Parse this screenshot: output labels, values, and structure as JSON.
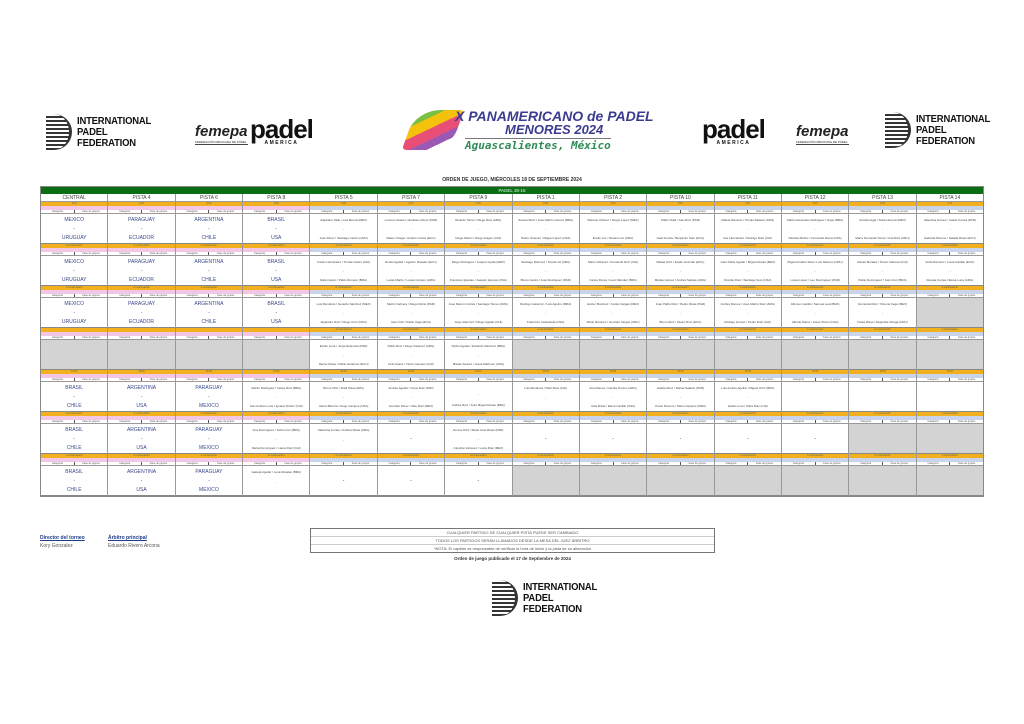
{
  "logos": {
    "ipf": "INTERNATIONAL PADEL FEDERATION",
    "ipf_lines": [
      "INTERNATIONAL",
      "PADEL",
      "FEDERATION"
    ],
    "femepa": "femepa",
    "femepa_sub": "FEDERACIÓN MEXICANA DE PÁDEL",
    "padel": "padel",
    "america": "AMERICA"
  },
  "event": {
    "line1": "X PANAMERICANO de PADEL",
    "line2": "MENORES 2024",
    "line3": "Aguascalientes, México"
  },
  "heading": "ORDEN DE JUEGO, MIÉRCOLES 18 DE SEPTIEMBRE 2024",
  "venue": "PADEL 30-15",
  "columns": [
    "CENTRAL",
    "PISTA 4",
    "PISTA 6",
    "PISTA 8",
    "PISTA 5",
    "PISTA 7",
    "PISTA 9",
    "PISTA 1",
    "PISTA 2",
    "PISTA 10",
    "PISTA 11",
    "PISTA 12",
    "PISTA 13",
    "PISTA 14"
  ],
  "slots": [
    {
      "time": "9:00",
      "next": "A continuación"
    },
    {
      "time": "A continuación"
    },
    {
      "time": "A continuación"
    },
    {
      "time": "A continuación"
    },
    {
      "time": "16:00"
    },
    {
      "time": "A continuación"
    },
    {
      "time": "A continuación"
    }
  ],
  "info": [
    "Categoría",
    "Fase de grupos"
  ],
  "cells": [
    [
      {
        "t": "team",
        "a": "MEXICO",
        "b": "URUGUAY"
      },
      {
        "t": "team",
        "a": "PARAGUAY",
        "b": "ECUADOR"
      },
      {
        "t": "team",
        "a": "ARGENTINA",
        "b": "CHILE"
      },
      {
        "t": "team",
        "a": "BRASIL",
        "b": "USA"
      },
      {
        "t": "pair",
        "a": "Alejandro Valle / Luis Bernal (MEX)",
        "b": "José Pérez / Santiago Castro (URU)"
      },
      {
        "t": "pair",
        "a": "Lorenzo Suárez / Emiliano Pérez (PAR)",
        "b": "Mateo Ortega / Andrés Cortés (ECU)"
      },
      {
        "t": "pair",
        "a": "Ricardo Torres / Diego Ríos (ARG)",
        "b": "Diego Martín / Diego Aragón (CHI)"
      },
      {
        "t": "pair",
        "a": "Samuel Ruiz / Juan Martín Gómez (BRA)",
        "b": "Pedro Jiménez / Miguel López (USA)"
      },
      {
        "t": "pair",
        "a": "Marcelo Chávez / Sergio López (MEX)",
        "b": "Emilio Luz / Daniel Luis (URU)"
      },
      {
        "t": "pair",
        "a": "Pablo Vidal / Iván Ruiz (PAR)",
        "b": "Gael Acosta / Benjamín Soto (ECU)"
      },
      {
        "t": "pair",
        "a": "Matías Ramírez / Tomás Salazar (ARG)",
        "b": "Iker Hernández / Rodrigo Díaz (CHI)"
      },
      {
        "t": "pair",
        "a": "Martín Alexander Rodríguez / Hugo (BRA)",
        "b": "Daniela Muñoz / Fernanda Ibarra (USA)"
      },
      {
        "t": "pair",
        "a": "Camila Vega / Sofía Herrera (MEX)",
        "b": "María Fernanda Torres / Ana Ruiz (URU)"
      },
      {
        "t": "pair",
        "a": "Valentina Gómez / Isabel Correa (PAR)",
        "b": "Gabriela Moreno / Natalia Rivas (ECU)"
      }
    ],
    [
      {
        "t": "team",
        "a": "MEXICO",
        "b": "URUGUAY"
      },
      {
        "t": "team",
        "a": "PARAGUAY",
        "b": "ECUADOR"
      },
      {
        "t": "team",
        "a": "ARGENTINA",
        "b": "CHILE"
      },
      {
        "t": "team",
        "a": "BRASIL",
        "b": "USA"
      },
      {
        "t": "pair",
        "a": "Carlos Hernández / Tomás Castro (CHI)",
        "b": "Rafa Castro / Pablo Romero (BRA)"
      },
      {
        "t": "pair",
        "a": "Emilio Aguilar / Agustín Rosales (ECU)",
        "b": "Lucas Martín / Lucas Cordero (ARG)"
      },
      {
        "t": "pair",
        "a": "Diego Rodríguez / Joaquín Ayala (MEX)",
        "b": "Francisco Iglesias / Joaquín Herrera (USA)"
      },
      {
        "t": "pair",
        "a": "Santiago Ramírez / Tomás Gil (URU)",
        "b": "Bruno Castro / Juan Rodríguez (PAR)"
      },
      {
        "t": "pair",
        "a": "Mario Vázquez / Fernando Ruiz (CHI)",
        "b": "Carlos Flores / León Méndez (BRA)"
      },
      {
        "t": "pair",
        "a": "Rafael Ortiz / Emilio Guzmán (ECU)",
        "b": "Matías Gómez / Andrés Salinas (ARG)"
      },
      {
        "t": "pair",
        "a": "Juan Pablo Aguilar / Miguel Rosas (MEX)",
        "b": "Nicolás Díaz / Santiago Soto (USA)"
      },
      {
        "t": "pair",
        "a": "Miguel Andrés Silva / Luis Navarro (URU)",
        "b": "Lucas López / Leo Domínguez (PAR)"
      },
      {
        "t": "pair",
        "a": "Daniel Morales / Óscar Cabrera (CHI)",
        "b": "Pablo Domínguez / Iván Cruz (BRA)"
      },
      {
        "t": "pair",
        "a": "Sofía Ramírez / Lucía Castillo (ECU)",
        "b": "Renata Correa / Elena Luna (ARG)"
      }
    ],
    [
      {
        "t": "team",
        "a": "MEXICO",
        "b": "URUGUAY"
      },
      {
        "t": "team",
        "a": "PARAGUAY",
        "b": "ECUADOR"
      },
      {
        "t": "team",
        "a": "ARGENTINA",
        "b": "CHILE"
      },
      {
        "t": "team",
        "a": "BRASIL",
        "b": "USA"
      },
      {
        "t": "pair",
        "a": "Luis Mendoza / Gerardo Sánchez (MEX)",
        "b": "Alejandro Ruiz / Diego Cruz (URU)"
      },
      {
        "t": "pair",
        "a": "Martín Cabrera / Diego Rubio (PAR)",
        "b": "Iván Ortiz / Pablo Vega (ECU)"
      },
      {
        "t": "pair",
        "a": "José Ramón Cortés / Santiago Torres (ARG)",
        "b": "Jorge Ramírez / Diego Aguilar (CHI)"
      },
      {
        "t": "pair",
        "a": "Rodrigo Gutiérrez / Luis Aguirre (BRA)",
        "b": "Francisco Castañeda (USA)"
      },
      {
        "t": "pair",
        "a": "Héctor Martínez / Carlos Vargas (MEX)",
        "b": "Mario Ramírez / Gonzalo Vargas (URU)"
      },
      {
        "t": "pair",
        "a": "Juan Pablo Ruiz / Pedro Rivas (PAR)",
        "b": "Bruno Ruiz / Álvaro Ruiz (ECU)"
      },
      {
        "t": "pair",
        "a": "Andrés Ramos / Juan Martín Ruiz (ARG)",
        "b": "Rodrigo Gómez / Pedro Díaz (CHI)"
      },
      {
        "t": "pair",
        "a": "Alfonso Castillo / Samuel Leal (BRA)",
        "b": "Alfredo Ibarra / Jesús Torres (USA)"
      },
      {
        "t": "pair",
        "a": "Fernanda Ruiz / Ximena Vega (MEX)",
        "b": "Paula Rivas / Alejandra Ortega (URU)"
      },
      {
        "t": "gray"
      }
    ],
    [
      {
        "t": "gray"
      },
      {
        "t": "gray"
      },
      {
        "t": "gray"
      },
      {
        "t": "gray"
      },
      {
        "t": "pair",
        "a": "Emilio Luna / Jorge Espinosa (PAR)",
        "b": "Héctor Rojas / Pablo Gutiérrez (ECU)"
      },
      {
        "t": "pair",
        "a": "Pablo Ruiz / Diego Vázquez (ARG)",
        "b": "Felix Ibarra / Víctor Campos (CHI)"
      },
      {
        "t": "pair",
        "a": "Pedro Aguilar / Eduardo Sánchez (BRA)",
        "b": "Matías Suárez / Jesús Martínez (USA)"
      },
      {
        "t": "gray"
      },
      {
        "t": "gray"
      },
      {
        "t": "gray"
      },
      {
        "t": "gray"
      },
      {
        "t": "gray"
      },
      {
        "t": "gray"
      },
      {
        "t": "gray"
      }
    ],
    [
      {
        "t": "team",
        "a": "BRASIL",
        "b": "CHILE"
      },
      {
        "t": "team",
        "a": "ARGENTINA",
        "b": "USA"
      },
      {
        "t": "team",
        "a": "PARAGUAY",
        "b": "MEXICO"
      },
      {
        "t": "pair",
        "a": "Martín Rodríguez / Felipe Ruiz (BRA)",
        "b": "Iván Andrés Luna / Ignacio Núñez (CHI)"
      },
      {
        "t": "pair",
        "a": "Bruno Ortiz / Raúl Silva (ARG)",
        "b": "Alexis Barrera / Hugo Campos (USA)"
      },
      {
        "t": "pair",
        "a": "Andrés Aguilar / Omar Ruiz (PAR)",
        "b": "Gonzalo Pérez / Alan Ruiz (MEX)"
      },
      {
        "t": "pair",
        "a": "",
        "b": "Andrés Ruiz / José Miguel Rosas (BRA)"
      },
      {
        "t": "pair",
        "a": "Luis Mendoza / Raúl Silva (CHI)",
        "b": ""
      },
      {
        "t": "pair",
        "a": "Ana Ramos / Camila Orozco (ARG)",
        "b": "Julia Rivas / Elena Castillo (USA)"
      },
      {
        "t": "pair",
        "a": "Gabriel Ruiz / Daniel Salazar (PAR)",
        "b": "Oscar Romero / Mario Campos (MEX)"
      },
      {
        "t": "pair",
        "a": "Luis Andrés Aguilar / Miguel Ortiz (BRA)",
        "b": "Isabel Luna / Sofía Ruiz (CHI)"
      },
      {
        "t": "empty"
      },
      {
        "t": "empty"
      },
      {
        "t": "empty"
      }
    ],
    [
      {
        "t": "team",
        "a": "BRASIL",
        "b": "CHILE"
      },
      {
        "t": "team",
        "a": "ARGENTINA",
        "b": "USA"
      },
      {
        "t": "team",
        "a": "PARAGUAY",
        "b": "MEXICO"
      },
      {
        "t": "pair",
        "a": "Ana Domínguez / Sofía Cruz (BRA)",
        "b": "Marta Domínguez / Laura Ruiz (CHI)"
      },
      {
        "t": "pair",
        "a": "Valentina Cortés / Andrea Rivas (ARG)",
        "b": ""
      },
      {
        "t": "dash"
      },
      {
        "t": "pair",
        "a": "Emma Ortiz / Maria José Rivas (PAR)",
        "b": "Carolina Vázquez / Lucía Díaz (MEX)"
      },
      {
        "t": "dash"
      },
      {
        "t": "dash"
      },
      {
        "t": "dash"
      },
      {
        "t": "dash"
      },
      {
        "t": "dash"
      },
      {
        "t": "gray"
      },
      {
        "t": "gray"
      }
    ],
    [
      {
        "t": "team",
        "a": "BRASIL",
        "b": "CHILE"
      },
      {
        "t": "team",
        "a": "ARGENTINA",
        "b": "USA"
      },
      {
        "t": "team",
        "a": "PARAGUAY",
        "b": "MEXICO"
      },
      {
        "t": "pair",
        "a": "Isabela Aguilar / Luna Morales (BRA)",
        "b": ""
      },
      {
        "t": "dash"
      },
      {
        "t": "dash"
      },
      {
        "t": "dash"
      },
      {
        "t": "gray"
      },
      {
        "t": "gray"
      },
      {
        "t": "gray"
      },
      {
        "t": "gray"
      },
      {
        "t": "gray"
      },
      {
        "t": "gray"
      },
      {
        "t": "gray"
      }
    ]
  ],
  "footer": {
    "director_label": "Director del torneo",
    "director": "Kory Gonzalez",
    "referee_label": "Árbitro principal",
    "referee": "Eduardo Rivero Arcona",
    "notes": [
      "CUALQUIER PARTIDO DE CUALQUIER PISTA PUEDE SER CAMBIADO",
      "TODOS LOS PARTIDOS SERÁN LLAMADOS DESDE LA MESA DEL JUEZ ÁRBITRO",
      "*NOTA: El capitán es responsable de verificar la hora de inicio y la pista de su alineación"
    ],
    "published": "Orden de juego publicado el 17 de Septiembre de 2024"
  },
  "colors": {
    "green": "#0b6e12",
    "orange": "#f2b01e",
    "pink": "#f4c6e6",
    "gray": "#d3d3d3",
    "team_text": "#3a4a8a"
  }
}
